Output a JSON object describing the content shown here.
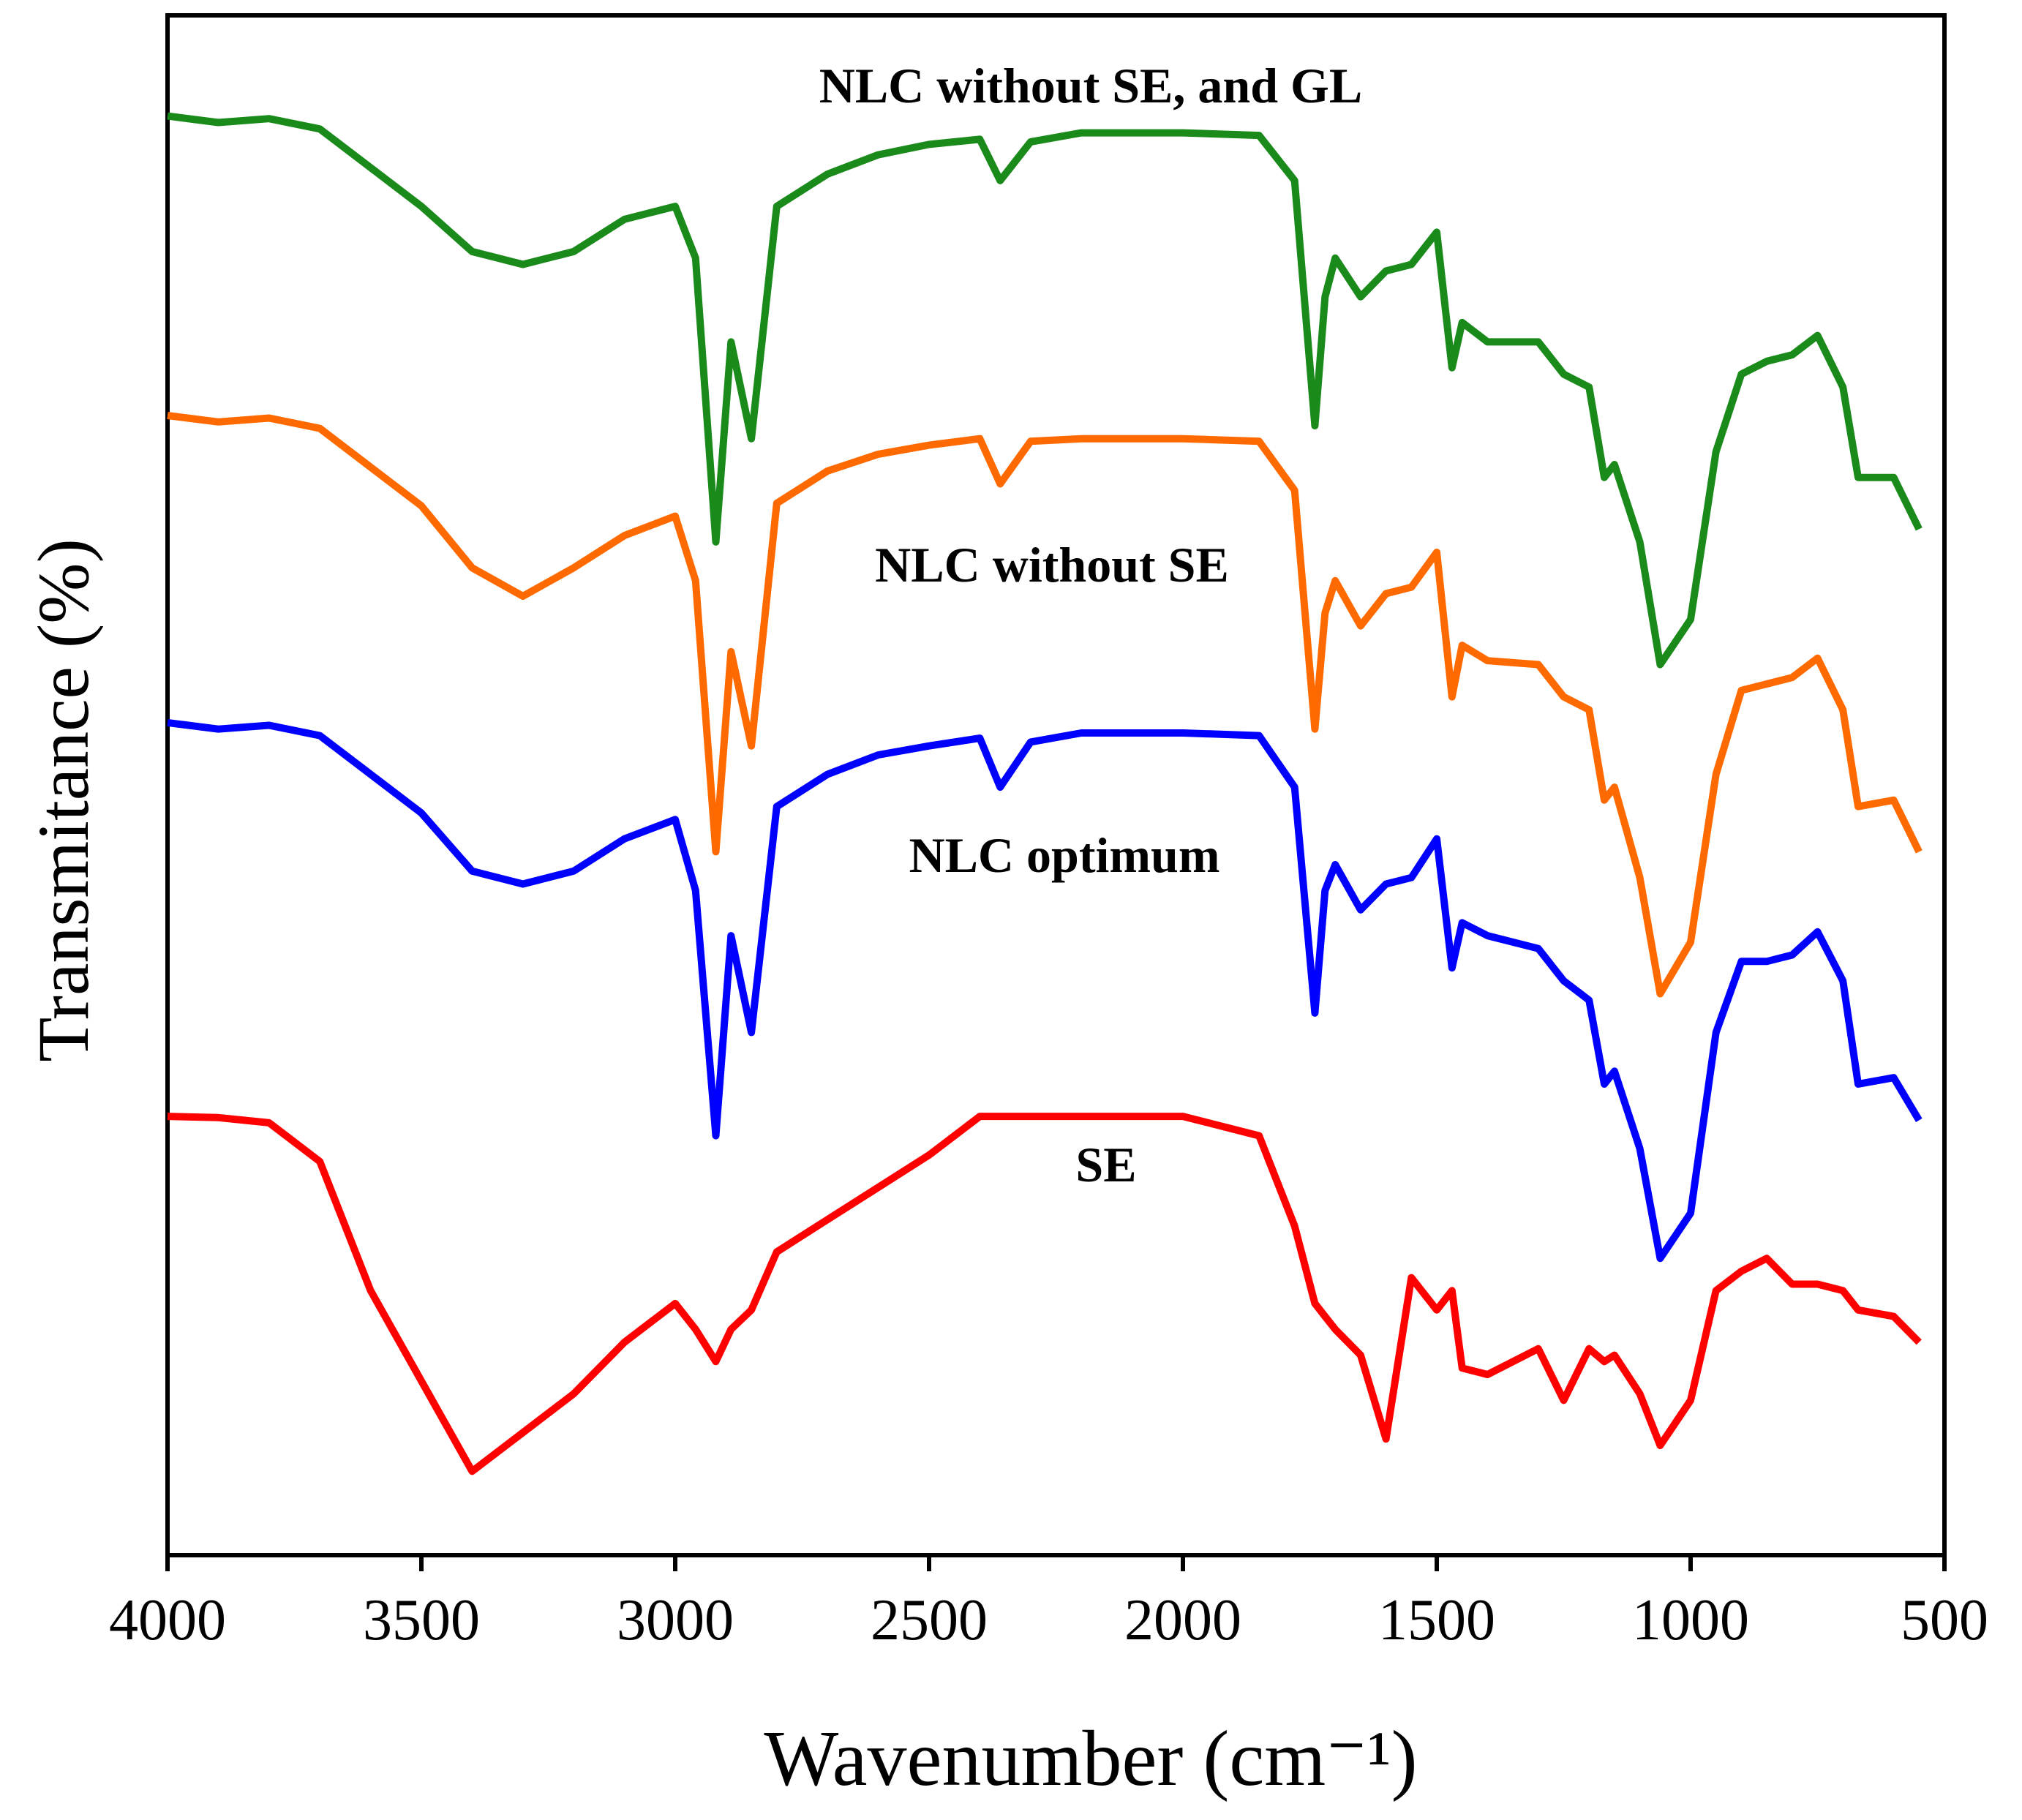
{
  "chart_data": {
    "type": "line",
    "xlabel": "Wavenumber (cm⁻¹)",
    "ylabel": "Transmitance (%)",
    "annotations": [
      "NLC without SE, and GL",
      "NLC without SE",
      "NLC optimum",
      "SE"
    ],
    "x": [
      4000,
      3900,
      3800,
      3700,
      3600,
      3500,
      3400,
      3300,
      3200,
      3100,
      3000,
      2960,
      2920,
      2890,
      2850,
      2800,
      2700,
      2600,
      2500,
      2400,
      2360,
      2300,
      2200,
      2000,
      1850,
      1780,
      1740,
      1720,
      1700,
      1650,
      1600,
      1550,
      1500,
      1470,
      1450,
      1400,
      1300,
      1250,
      1200,
      1170,
      1150,
      1100,
      1060,
      1000,
      950,
      900,
      850,
      800,
      750,
      700,
      670,
      600,
      550
    ],
    "series": [
      {
        "name": "NLC without SE, and GL",
        "color": "#1a8a1a",
        "values": [
          111.5,
          111,
          111.3,
          110.5,
          107.5,
          104.5,
          101,
          100,
          101,
          103.5,
          104.5,
          100.5,
          78.5,
          94,
          86.5,
          104.5,
          107,
          108.5,
          109.3,
          109.7,
          106.5,
          109.5,
          110.2,
          110.2,
          110,
          106.5,
          87.5,
          97.5,
          100.5,
          97.5,
          99.5,
          100,
          102.5,
          92,
          95.5,
          94,
          94,
          91.5,
          90.5,
          83.5,
          84.5,
          78.5,
          69,
          72.5,
          85.5,
          91.5,
          92.5,
          93,
          94.5,
          90.5,
          83.5,
          83.5,
          79.5
        ]
      },
      {
        "name": "NLC without SE",
        "color": "#ff6a00",
        "values": [
          88.3,
          87.8,
          88.1,
          87.3,
          84.3,
          81.3,
          76.5,
          74.3,
          76.5,
          79,
          80.5,
          75.5,
          54.5,
          70,
          62.7,
          81.5,
          84,
          85.3,
          86,
          86.5,
          83,
          86.3,
          86.5,
          86.5,
          86.3,
          82.5,
          64,
          73,
          75.5,
          72,
          74.5,
          75,
          77.7,
          66.5,
          70.5,
          69.3,
          69,
          66.5,
          65.5,
          58.5,
          59.5,
          52.5,
          43.5,
          47.5,
          60.5,
          67,
          67.5,
          68,
          69.5,
          65.5,
          58,
          58.5,
          54.5
        ]
      },
      {
        "name": "NLC optimum",
        "color": "#0000ff",
        "values": [
          64.5,
          64,
          64.3,
          63.5,
          60.5,
          57.5,
          53,
          52,
          53,
          55.5,
          57,
          51.5,
          32.5,
          48,
          40.5,
          58,
          60.5,
          62,
          62.7,
          63.3,
          59.5,
          63,
          63.7,
          63.7,
          63.5,
          59.5,
          42,
          51.5,
          53.5,
          50,
          52,
          52.5,
          55.5,
          45.5,
          49,
          48,
          47,
          44.5,
          43,
          36.5,
          37.5,
          31.5,
          23,
          26.5,
          40.5,
          46,
          46,
          46.5,
          48.3,
          44.5,
          36.5,
          37,
          33.7
        ]
      },
      {
        "name": "SE",
        "color": "#ff0000",
        "values": [
          34,
          33.9,
          33.5,
          30.5,
          20.5,
          13.5,
          6.5,
          9.5,
          12.5,
          16.5,
          19.5,
          17.5,
          15,
          17.5,
          19,
          23.5,
          26,
          28.5,
          31,
          34,
          34,
          34,
          34,
          34,
          32.5,
          25.5,
          19.5,
          18.5,
          17.5,
          15.5,
          9,
          21.5,
          19,
          20.5,
          14.5,
          14,
          16,
          12,
          16,
          15,
          15.5,
          12.5,
          8.5,
          12,
          20.5,
          22,
          23,
          21,
          21,
          20.5,
          19,
          18.5,
          16.5
        ]
      }
    ],
    "xlim": [
      4000,
      500
    ],
    "xticks": [
      4000,
      3500,
      3000,
      2500,
      2000,
      1500,
      1000,
      500
    ],
    "ylim": [
      0,
      119.3
    ],
    "grid": false
  }
}
